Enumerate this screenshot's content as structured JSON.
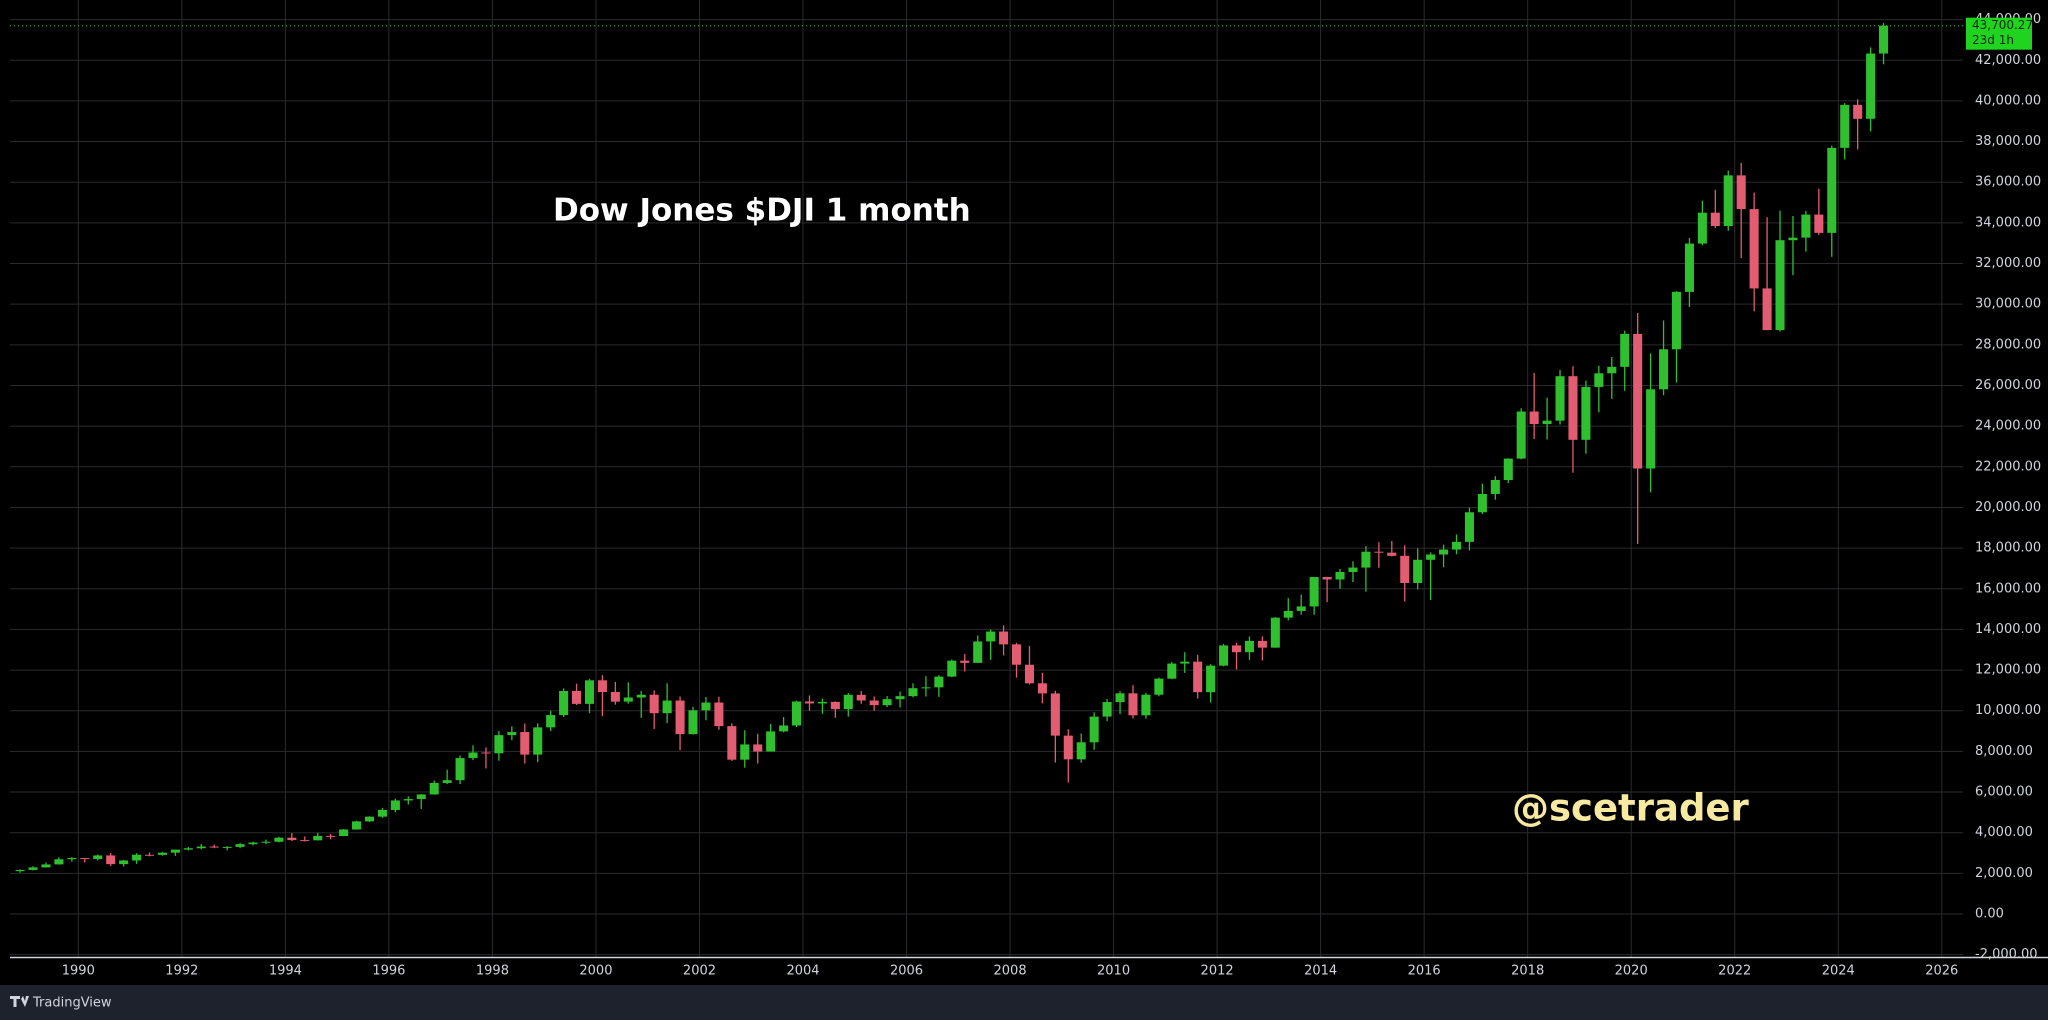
{
  "chart_data": {
    "type": "candlestick",
    "title": "Dow Jones $DJI 1 month",
    "annotation": "@scetrader",
    "up_color": "#2fbf2f",
    "down_color": "#e25c72",
    "grid": true,
    "xlim": [
      1988.68,
      2026.41
    ],
    "ylim": [
      -2115,
      44964
    ],
    "xticks": [
      1990,
      1992,
      1994,
      1996,
      1998,
      2000,
      2002,
      2004,
      2006,
      2008,
      2010,
      2012,
      2014,
      2016,
      2018,
      2020,
      2022,
      2024,
      2026
    ],
    "yticks": [
      {
        "value": -2000,
        "label": "-2,000.00"
      },
      {
        "value": 0,
        "label": "0.00"
      },
      {
        "value": 2000,
        "label": "2,000.00"
      },
      {
        "value": 4000,
        "label": "4,000.00"
      },
      {
        "value": 6000,
        "label": "6,000.00"
      },
      {
        "value": 8000,
        "label": "8,000.00"
      },
      {
        "value": 10000,
        "label": "10,000.00"
      },
      {
        "value": 12000,
        "label": "12,000.00"
      },
      {
        "value": 14000,
        "label": "14,000.00"
      },
      {
        "value": 16000,
        "label": "16,000.00"
      },
      {
        "value": 18000,
        "label": "18,000.00"
      },
      {
        "value": 20000,
        "label": "20,000.00"
      },
      {
        "value": 22000,
        "label": "22,000.00"
      },
      {
        "value": 24000,
        "label": "24,000.00"
      },
      {
        "value": 26000,
        "label": "26,000.00"
      },
      {
        "value": 28000,
        "label": "28,000.00"
      },
      {
        "value": 30000,
        "label": "30,000.00"
      },
      {
        "value": 32000,
        "label": "32,000.00"
      },
      {
        "value": 34000,
        "label": "34,000.00"
      },
      {
        "value": 36000,
        "label": "36,000.00"
      },
      {
        "value": 38000,
        "label": "38,000.00"
      },
      {
        "value": 40000,
        "label": "40,000.00"
      },
      {
        "value": 42000,
        "label": "42,000.00"
      },
      {
        "value": 44000,
        "label": "44,000.00"
      }
    ],
    "last_price": {
      "value": 43700.27,
      "label": "43,700.27"
    },
    "countdown": "23d 1h",
    "x": [
      1988.875,
      1989.125,
      1989.375,
      1989.625,
      1989.875,
      1990.125,
      1990.375,
      1990.625,
      1990.875,
      1991.125,
      1991.375,
      1991.625,
      1991.875,
      1992.125,
      1992.375,
      1992.625,
      1992.875,
      1993.125,
      1993.375,
      1993.625,
      1993.875,
      1994.125,
      1994.375,
      1994.625,
      1994.875,
      1995.125,
      1995.375,
      1995.625,
      1995.875,
      1996.125,
      1996.375,
      1996.625,
      1996.875,
      1997.125,
      1997.375,
      1997.625,
      1997.875,
      1998.125,
      1998.375,
      1998.625,
      1998.875,
      1999.125,
      1999.375,
      1999.625,
      1999.875,
      2000.125,
      2000.375,
      2000.625,
      2000.875,
      2001.125,
      2001.375,
      2001.625,
      2001.875,
      2002.125,
      2002.375,
      2002.625,
      2002.875,
      2003.125,
      2003.375,
      2003.625,
      2003.875,
      2004.125,
      2004.375,
      2004.625,
      2004.875,
      2005.125,
      2005.375,
      2005.625,
      2005.875,
      2006.125,
      2006.375,
      2006.625,
      2006.875,
      2007.125,
      2007.375,
      2007.625,
      2007.875,
      2008.125,
      2008.375,
      2008.625,
      2008.875,
      2009.125,
      2009.375,
      2009.625,
      2009.875,
      2010.125,
      2010.375,
      2010.625,
      2010.875,
      2011.125,
      2011.375,
      2011.625,
      2011.875,
      2012.125,
      2012.375,
      2012.625,
      2012.875,
      2013.125,
      2013.375,
      2013.625,
      2013.875,
      2014.125,
      2014.375,
      2014.625,
      2014.875,
      2015.125,
      2015.375,
      2015.625,
      2015.875,
      2016.125,
      2016.375,
      2016.625,
      2016.875,
      2017.125,
      2017.375,
      2017.625,
      2017.875,
      2018.125,
      2018.375,
      2018.625,
      2018.875,
      2019.125,
      2019.375,
      2019.625,
      2019.875,
      2020.125,
      2020.375,
      2020.625,
      2020.875,
      2021.125,
      2021.375,
      2021.625,
      2021.875,
      2022.125,
      2022.375,
      2022.625,
      2022.875,
      2023.125,
      2023.375,
      2023.625,
      2023.875,
      2024.125,
      2024.375,
      2024.625,
      2024.875
    ],
    "open": [
      2110,
      2169,
      2293,
      2440,
      2693,
      2753,
      2707,
      2881,
      2453,
      2634,
      2914,
      2907,
      3017,
      3169,
      3236,
      3319,
      3272,
      3301,
      3436,
      3516,
      3555,
      3754,
      3636,
      3625,
      3843,
      3834,
      4158,
      4556,
      4789,
      5117,
      5587,
      5655,
      5882,
      6448,
      6584,
      7673,
      7945,
      7908,
      8800,
      8952,
      7843,
      9181,
      9786,
      10971,
      10337,
      11497,
      10922,
      10448,
      10651,
      10787,
      9879,
      10502,
      8848,
      10022,
      10404,
      9243,
      7592,
      8342,
      7992,
      8985,
      9275,
      10454,
      10358,
      10435,
      10080,
      10783,
      10504,
      10275,
      10569,
      10718,
      11109,
      11150,
      11679,
      12463,
      12354,
      13409,
      13896,
      13265,
      12263,
      11350,
      10851,
      8776,
      7609,
      8447,
      9712,
      10428,
      10857,
      9774,
      10788,
      11578,
      12320,
      12414,
      10913,
      12218,
      13212,
      12880,
      13437,
      13104,
      14579,
      14910,
      15130,
      16577,
      16458,
      16827,
      17043,
      17823,
      17776,
      17620,
      16285,
      17425,
      17685,
      17930,
      18308,
      19763,
      20663,
      21350,
      22405,
      24719,
      24103,
      24271,
      26458,
      23327,
      25929,
      26600,
      26917,
      28538,
      21917,
      25813,
      27782,
      30606,
      32982,
      34503,
      33844,
      36338,
      34678,
      30775,
      28726,
      33147,
      33274,
      34408,
      33508,
      37690,
      39807,
      39119,
      42330
    ],
    "high": [
      2190,
      2350,
      2540,
      2790,
      2800,
      2760,
      2930,
      3000,
      2660,
      2990,
      3030,
      3060,
      3170,
      3300,
      3440,
      3420,
      3340,
      3500,
      3560,
      3660,
      3800,
      3980,
      3820,
      3990,
      3940,
      4180,
      4590,
      4810,
      5220,
      5680,
      5790,
      5900,
      6570,
      7100,
      7800,
      8300,
      8200,
      9000,
      9230,
      9370,
      9380,
      10000,
      11100,
      11330,
      11570,
      11750,
      11420,
      11400,
      10980,
      11000,
      11350,
      10700,
      10190,
      10680,
      10690,
      9380,
      9040,
      8870,
      9350,
      9690,
      10490,
      10750,
      10600,
      10460,
      10870,
      10980,
      10700,
      10720,
      10940,
      11350,
      11700,
      11750,
      12520,
      12790,
      13700,
      14000,
      14200,
      13340,
      13180,
      11870,
      10980,
      9090,
      8880,
      9920,
      10580,
      10960,
      11260,
      10880,
      11630,
      12400,
      12880,
      12750,
      12290,
      13290,
      13340,
      13650,
      13660,
      14600,
      15540,
      15710,
      16590,
      16590,
      16980,
      17350,
      18100,
      18290,
      18350,
      18140,
      17980,
      17790,
      18170,
      18670,
      19990,
      21170,
      21540,
      22420,
      24880,
      26620,
      25400,
      26770,
      26950,
      26240,
      26970,
      27400,
      28700,
      29570,
      27580,
      29200,
      30640,
      33260,
      35090,
      35630,
      36570,
      36950,
      35490,
      34280,
      34600,
      34340,
      34590,
      35680,
      37800,
      39890,
      40080,
      42630,
      43830
    ],
    "low": [
      2030,
      2140,
      2280,
      2430,
      2580,
      2540,
      2640,
      2360,
      2340,
      2470,
      2840,
      2870,
      2860,
      3130,
      3180,
      3240,
      3130,
      3240,
      3370,
      3440,
      3520,
      3590,
      3570,
      3620,
      3670,
      3830,
      4150,
      4530,
      4730,
      5000,
      5390,
      5170,
      5870,
      6390,
      6390,
      7570,
      7160,
      7540,
      8550,
      7400,
      7470,
      9000,
      9690,
      10280,
      9880,
      9730,
      10300,
      10350,
      9650,
      9100,
      9390,
      8060,
      8830,
      9530,
      9060,
      7530,
      7200,
      7400,
      7990,
      8940,
      9200,
      10000,
      9850,
      9650,
      9710,
      10340,
      10000,
      10180,
      10160,
      10660,
      10700,
      10680,
      11650,
      11930,
      12350,
      12500,
      12720,
      11630,
      11290,
      10360,
      7450,
      6470,
      7440,
      8080,
      9490,
      9830,
      9620,
      9610,
      10710,
      11550,
      11860,
      10600,
      10400,
      12180,
      12030,
      12500,
      12470,
      13100,
      14450,
      14720,
      14720,
      15340,
      16000,
      16330,
      15860,
      17030,
      17590,
      15370,
      15970,
      15450,
      17060,
      17700,
      17880,
      19680,
      20380,
      21200,
      22370,
      23360,
      23340,
      24080,
      21710,
      22640,
      24680,
      25340,
      25740,
      18210,
      20740,
      25520,
      26140,
      29860,
      32900,
      33740,
      33610,
      32270,
      29650,
      28720,
      28660,
      31430,
      32580,
      33400,
      32330,
      37120,
      37610,
      38500,
      41800
    ],
    "close": [
      2169,
      2293,
      2440,
      2693,
      2753,
      2707,
      2881,
      2453,
      2634,
      2914,
      2907,
      3017,
      3169,
      3236,
      3319,
      3272,
      3301,
      3436,
      3516,
      3555,
      3754,
      3636,
      3625,
      3843,
      3834,
      4158,
      4556,
      4789,
      5117,
      5587,
      5655,
      5882,
      6448,
      6584,
      7673,
      7945,
      7908,
      8800,
      8952,
      7843,
      9181,
      9786,
      10971,
      10337,
      11497,
      10922,
      10448,
      10651,
      10787,
      9879,
      10502,
      8848,
      10022,
      10404,
      9243,
      7592,
      8342,
      7992,
      8985,
      9275,
      10454,
      10358,
      10435,
      10080,
      10783,
      10504,
      10275,
      10569,
      10718,
      11109,
      11150,
      11679,
      12463,
      12354,
      13409,
      13896,
      13265,
      12263,
      11350,
      10851,
      8776,
      7609,
      8447,
      9712,
      10428,
      10857,
      9774,
      10788,
      11578,
      12320,
      12414,
      10913,
      12218,
      13212,
      12880,
      13437,
      13104,
      14579,
      14910,
      15130,
      16577,
      16458,
      16827,
      17043,
      17823,
      17776,
      17620,
      16285,
      17425,
      17685,
      17930,
      18308,
      19763,
      20663,
      21350,
      22405,
      24719,
      24103,
      24271,
      26458,
      23327,
      25929,
      26600,
      26917,
      28538,
      21917,
      25813,
      27782,
      30606,
      32982,
      34503,
      33844,
      36338,
      34678,
      30775,
      28726,
      33147,
      33274,
      34408,
      33508,
      37690,
      39807,
      39119,
      42330,
      43700.27
    ]
  },
  "footer": {
    "brand": "TradingView"
  }
}
